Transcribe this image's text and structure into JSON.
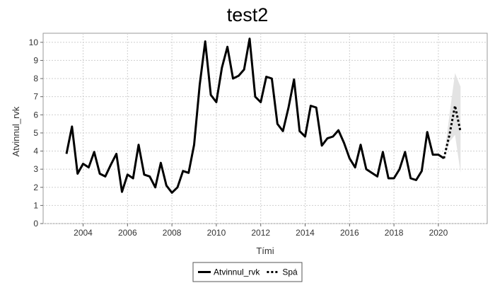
{
  "chart_data": {
    "type": "line",
    "title": "test2",
    "xlabel": "Tími",
    "ylabel": "Atvinnul_rvk",
    "xlim": [
      2002.2,
      2022.2
    ],
    "ylim": [
      0,
      10.5
    ],
    "x_ticks": [
      "2004",
      "2006",
      "2008",
      "2010",
      "2012",
      "2014",
      "2016",
      "2018",
      "2020"
    ],
    "y_ticks": [
      "0",
      "1",
      "2",
      "3",
      "4",
      "5",
      "6",
      "7",
      "8",
      "9",
      "10"
    ],
    "grid": true,
    "legend_position": "bottom-center",
    "series": [
      {
        "name": "Atvinnul_rvk",
        "style": "solid",
        "color": "#000000",
        "x": [
          2003.25,
          2003.5,
          2003.75,
          2004.0,
          2004.25,
          2004.5,
          2004.75,
          2005.0,
          2005.25,
          2005.5,
          2005.75,
          2006.0,
          2006.25,
          2006.5,
          2006.75,
          2007.0,
          2007.25,
          2007.5,
          2007.75,
          2008.0,
          2008.25,
          2008.5,
          2008.75,
          2009.0,
          2009.25,
          2009.5,
          2009.75,
          2010.0,
          2010.25,
          2010.5,
          2010.75,
          2011.0,
          2011.25,
          2011.5,
          2011.75,
          2012.0,
          2012.25,
          2012.5,
          2012.75,
          2013.0,
          2013.25,
          2013.5,
          2013.75,
          2014.0,
          2014.25,
          2014.5,
          2014.75,
          2015.0,
          2015.25,
          2015.5,
          2015.75,
          2016.0,
          2016.25,
          2016.5,
          2016.75,
          2017.0,
          2017.25,
          2017.5,
          2017.75,
          2018.0,
          2018.25,
          2018.5,
          2018.75,
          2019.0,
          2019.25,
          2019.5,
          2019.75,
          2020.0,
          2020.25
        ],
        "values": [
          3.85,
          5.35,
          2.75,
          3.3,
          3.1,
          3.95,
          2.75,
          2.6,
          3.25,
          3.85,
          1.75,
          2.7,
          2.5,
          4.35,
          2.7,
          2.6,
          2.0,
          3.35,
          2.1,
          1.7,
          2.0,
          2.9,
          2.8,
          4.35,
          7.65,
          10.05,
          7.1,
          6.7,
          8.6,
          9.75,
          8.0,
          8.15,
          8.5,
          10.2,
          7.0,
          6.7,
          8.1,
          8.0,
          5.5,
          5.1,
          6.4,
          7.95,
          5.1,
          4.8,
          6.5,
          6.4,
          4.3,
          4.7,
          4.8,
          5.15,
          4.45,
          3.6,
          3.1,
          4.35,
          3.0,
          2.8,
          2.6,
          3.95,
          2.5,
          2.5,
          3.0,
          3.95,
          2.5,
          2.4,
          2.9,
          5.05,
          3.8,
          3.8,
          3.6
        ]
      },
      {
        "name": "Spá",
        "style": "dashed",
        "color": "#000000",
        "x": [
          2020.25,
          2020.5,
          2020.75,
          2021.0
        ],
        "values": [
          3.6,
          4.9,
          6.5,
          5.05
        ]
      }
    ],
    "forecast_band": {
      "color": "#e3e3e3",
      "x": [
        2020.25,
        2020.5,
        2020.75,
        2021.0
      ],
      "lower": [
        3.6,
        4.5,
        4.9,
        2.8
      ],
      "upper": [
        3.6,
        6.0,
        8.3,
        7.55
      ]
    }
  }
}
